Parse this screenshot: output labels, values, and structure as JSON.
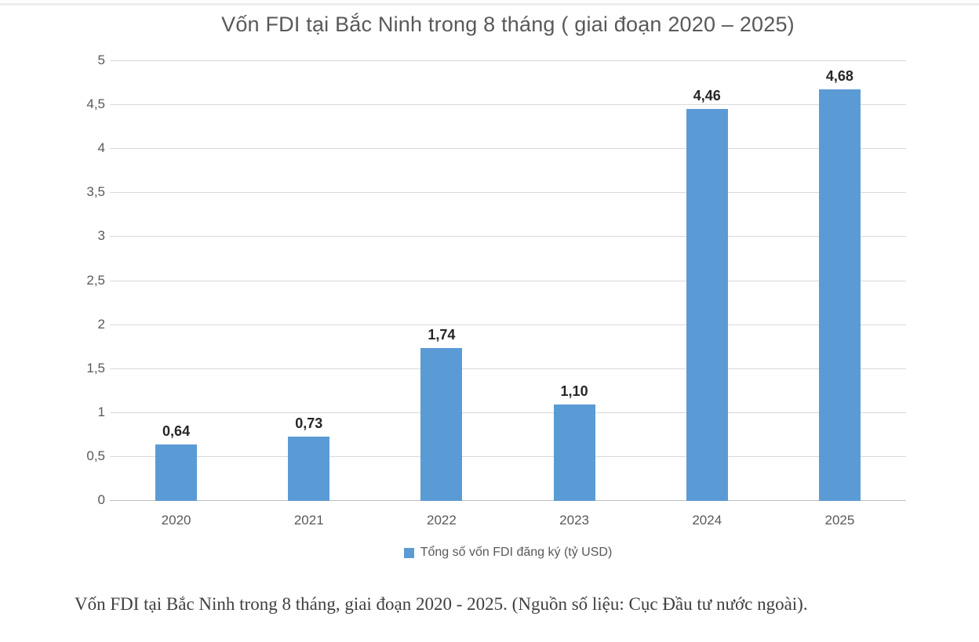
{
  "figure": {
    "caption": "Vốn FDI tại Bắc Ninh trong 8 tháng, giai đoạn 2020 - 2025. (Nguồn số liệu: Cục Đầu tư nước ngoài)."
  },
  "chart_data": {
    "type": "bar",
    "title": "Vốn FDI tại Bắc Ninh trong 8 tháng ( giai đoạn 2020 – 2025)",
    "categories": [
      "2020",
      "2021",
      "2022",
      "2023",
      "2024",
      "2025"
    ],
    "values": [
      0.64,
      0.73,
      1.74,
      1.1,
      4.46,
      4.68
    ],
    "value_labels": [
      "0,64",
      "0,73",
      "1,74",
      "1,10",
      "4,46",
      "4,68"
    ],
    "xlabel": "",
    "ylabel": "",
    "ylim": [
      0,
      5
    ],
    "yticks": [
      0,
      0.5,
      1,
      1.5,
      2,
      2.5,
      3,
      3.5,
      4,
      4.5,
      5
    ],
    "ytick_labels": [
      "0",
      "0,5",
      "1",
      "1,5",
      "2",
      "2,5",
      "3",
      "3,5",
      "4",
      "4,5",
      "5"
    ],
    "grid": true,
    "bar_color": "#5B9BD5",
    "legend_position": "bottom",
    "legend": [
      {
        "label": "Tổng số vốn FDI đăng ký (tỷ USD)",
        "color": "#5B9BD5"
      }
    ]
  }
}
